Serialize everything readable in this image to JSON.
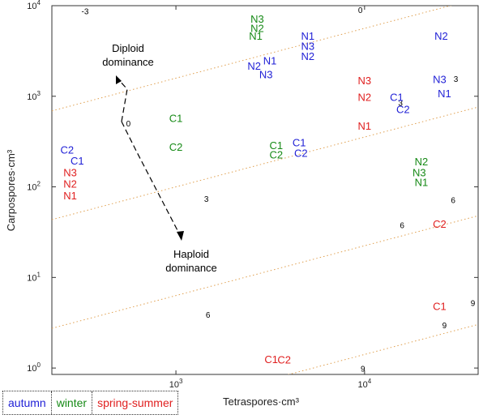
{
  "chart_data": {
    "type": "scatter",
    "xlabel": "Tetraspores·cm³",
    "ylabel": "Carpospores·cm³",
    "x_scale": "log",
    "y_scale": "log",
    "xlim": [
      220,
      40000
    ],
    "ylim": [
      0.85,
      10000
    ],
    "x_ticks": [
      {
        "value": 1000,
        "base": "10",
        "exp": "3"
      },
      {
        "value": 10000,
        "base": "10",
        "exp": "4"
      }
    ],
    "y_ticks": [
      {
        "value": 1,
        "base": "10",
        "exp": "0"
      },
      {
        "value": 10,
        "base": "10",
        "exp": "1"
      },
      {
        "value": 100,
        "base": "10",
        "exp": "2"
      },
      {
        "value": 1000,
        "base": "10",
        "exp": "3"
      },
      {
        "value": 10000,
        "base": "10",
        "exp": "4"
      }
    ],
    "grid": false,
    "series": [
      {
        "name": "autumn",
        "color": "#1f1fd6",
        "points": [
          {
            "label": "C2",
            "x": 265,
            "y": 250
          },
          {
            "label": "C1",
            "x": 300,
            "y": 190
          },
          {
            "label": "N1",
            "x": 5000,
            "y": 4500
          },
          {
            "label": "N3",
            "x": 5000,
            "y": 3500
          },
          {
            "label": "N2",
            "x": 5000,
            "y": 2700
          },
          {
            "label": "N1",
            "x": 3150,
            "y": 2400
          },
          {
            "label": "N2",
            "x": 2600,
            "y": 2100
          },
          {
            "label": "N3",
            "x": 3000,
            "y": 1700
          },
          {
            "label": "C1",
            "x": 4500,
            "y": 300
          },
          {
            "label": "C2",
            "x": 4600,
            "y": 230
          },
          {
            "label": "C1",
            "x": 14800,
            "y": 950
          },
          {
            "label": "C2",
            "x": 16000,
            "y": 700
          },
          {
            "label": "N2",
            "x": 25500,
            "y": 4500
          },
          {
            "label": "N3",
            "x": 25000,
            "y": 1500
          },
          {
            "label": "N1",
            "x": 26500,
            "y": 1050
          }
        ]
      },
      {
        "name": "winter",
        "color": "#168a16",
        "points": [
          {
            "label": "N3",
            "x": 2700,
            "y": 7000
          },
          {
            "label": "N2",
            "x": 2700,
            "y": 5500
          },
          {
            "label": "N1",
            "x": 2650,
            "y": 4500
          },
          {
            "label": "C1",
            "x": 1000,
            "y": 560
          },
          {
            "label": "C2",
            "x": 1000,
            "y": 270
          },
          {
            "label": "C1",
            "x": 3400,
            "y": 280
          },
          {
            "label": "C2",
            "x": 3400,
            "y": 220
          },
          {
            "label": "N2",
            "x": 20000,
            "y": 185
          },
          {
            "label": "N3",
            "x": 19500,
            "y": 140
          },
          {
            "label": "N1",
            "x": 20000,
            "y": 110
          }
        ]
      },
      {
        "name": "spring-summer",
        "color": "#e02020",
        "points": [
          {
            "label": "N3",
            "x": 275,
            "y": 140
          },
          {
            "label": "N2",
            "x": 275,
            "y": 105
          },
          {
            "label": "N1",
            "x": 275,
            "y": 78
          },
          {
            "label": "N3",
            "x": 10000,
            "y": 1450
          },
          {
            "label": "N2",
            "x": 10000,
            "y": 950
          },
          {
            "label": "N1",
            "x": 10000,
            "y": 460
          },
          {
            "label": "C2",
            "x": 25000,
            "y": 38
          },
          {
            "label": "C1",
            "x": 25000,
            "y": 4.7
          },
          {
            "label": "C1",
            "x": 3200,
            "y": 1.22
          },
          {
            "label": "C2",
            "x": 3750,
            "y": 1.2
          }
        ]
      }
    ],
    "contours": [
      {
        "label": "-3",
        "label_x": 330,
        "label_y": 8500
      },
      {
        "label": "0",
        "label_x": 9500,
        "label_y": 8800
      },
      {
        "label": "0",
        "label_x": 560,
        "label_y": 490
      },
      {
        "label": "3",
        "label_x": 1450,
        "label_y": 72
      },
      {
        "label": "3",
        "label_x": 15500,
        "label_y": 830
      },
      {
        "label": "3",
        "label_x": 30500,
        "label_y": 1520
      },
      {
        "label": "6",
        "label_x": 29500,
        "label_y": 70
      },
      {
        "label": "6",
        "label_x": 15800,
        "label_y": 37
      },
      {
        "label": "6",
        "label_x": 1480,
        "label_y": 3.8
      },
      {
        "label": "9",
        "label_x": 37500,
        "label_y": 5.1
      },
      {
        "label": "9",
        "label_x": 26500,
        "label_y": 2.9
      },
      {
        "label": "9",
        "label_x": 9800,
        "label_y": 0.96
      }
    ],
    "annotations": {
      "diploid": {
        "line1": "Diploid",
        "line2": "dominance"
      },
      "haploid": {
        "line1": "Haploid",
        "line2": "dominance"
      }
    },
    "contour_color": "#e0a050",
    "contour_label_color": "#000000"
  },
  "legend": {
    "autumn": "autumn",
    "winter": "winter",
    "spring_summer": "spring-summer"
  }
}
